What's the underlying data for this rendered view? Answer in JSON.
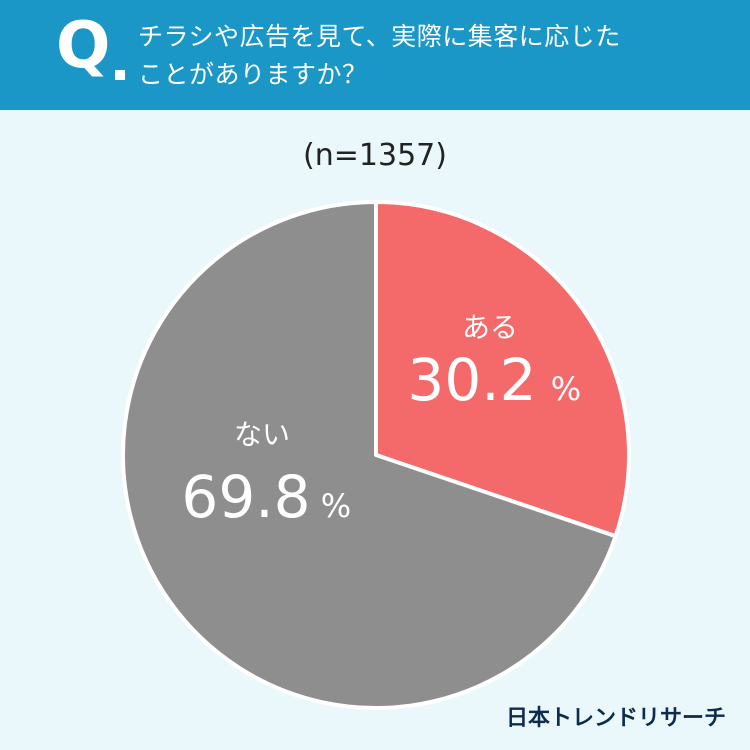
{
  "header": {
    "q_mark": "Q",
    "question_lines": [
      "チラシや広告を見て、実際に集客に応じた",
      "ことがありますか？"
    ]
  },
  "sample_size": "(n=1357)",
  "brand": "日本トレンドリサーチ",
  "colors": {
    "header": "#1a97c6",
    "background": "#eaf8fb",
    "aru": "#f4696a",
    "nai": "#8e8e8f"
  },
  "chart_data": {
    "type": "pie",
    "slices": [
      {
        "label": "ある",
        "value": 30.2,
        "display": "30.2",
        "unit": "%",
        "color": "#f4696a"
      },
      {
        "label": "ない",
        "value": 69.8,
        "display": "69.8",
        "unit": "%",
        "color": "#8e8e8f"
      }
    ],
    "start": "12 o'clock",
    "direction": "clockwise"
  }
}
